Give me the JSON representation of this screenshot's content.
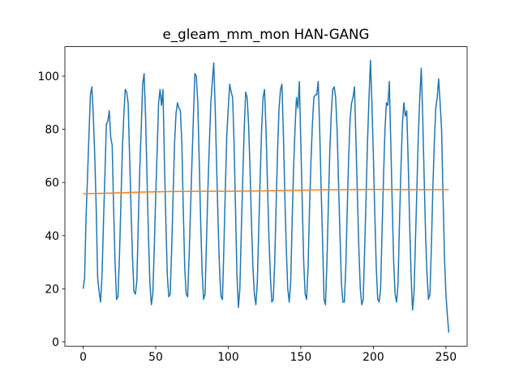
{
  "chart_data": {
    "type": "line",
    "title": "e_gleam_mm_mon HAN-GANG",
    "x": [
      0,
      1,
      2,
      3,
      4,
      5,
      6,
      7,
      8,
      9,
      10,
      11,
      12,
      13,
      14,
      15,
      16,
      17,
      18,
      19,
      20,
      21,
      22,
      23,
      24,
      25,
      26,
      27,
      28,
      29,
      30,
      31,
      32,
      33,
      34,
      35,
      36,
      37,
      38,
      39,
      40,
      41,
      42,
      43,
      44,
      45,
      46,
      47,
      48,
      49,
      50,
      51,
      52,
      53,
      54,
      55,
      56,
      57,
      58,
      59,
      60,
      61,
      62,
      63,
      64,
      65,
      66,
      67,
      68,
      69,
      70,
      71,
      72,
      73,
      74,
      75,
      76,
      77,
      78,
      79,
      80,
      81,
      82,
      83,
      84,
      85,
      86,
      87,
      88,
      89,
      90,
      91,
      92,
      93,
      94,
      95,
      96,
      97,
      98,
      99,
      100,
      101,
      102,
      103,
      104,
      105,
      106,
      107,
      108,
      109,
      110,
      111,
      112,
      113,
      114,
      115,
      116,
      117,
      118,
      119,
      120,
      121,
      122,
      123,
      124,
      125,
      126,
      127,
      128,
      129,
      130,
      131,
      132,
      133,
      134,
      135,
      136,
      137,
      138,
      139,
      140,
      141,
      142,
      143,
      144,
      145,
      146,
      147,
      148,
      149,
      150,
      151,
      152,
      153,
      154,
      155,
      156,
      157,
      158,
      159,
      160,
      161,
      162,
      163,
      164,
      165,
      166,
      167,
      168,
      169,
      170,
      171,
      172,
      173,
      174,
      175,
      176,
      177,
      178,
      179,
      180,
      181,
      182,
      183,
      184,
      185,
      186,
      187,
      188,
      189,
      190,
      191,
      192,
      193,
      194,
      195,
      196,
      197,
      198,
      199,
      200,
      201,
      202,
      203,
      204,
      205,
      206,
      207,
      208,
      209,
      210,
      211,
      212,
      213,
      214,
      215,
      216,
      217,
      218,
      219,
      220,
      221,
      222,
      223,
      224,
      225,
      226,
      227,
      228,
      229,
      230,
      231,
      232,
      233,
      234,
      235,
      236,
      237,
      238,
      239,
      240,
      241,
      242,
      243,
      244,
      245,
      246,
      247,
      248,
      249,
      250,
      251,
      252
    ],
    "series": [
      {
        "color": "#1f77b4",
        "values": [
          20,
          24,
          47,
          62,
          78,
          93,
          96,
          85,
          70,
          50,
          24,
          19,
          15,
          25,
          45,
          63,
          82,
          83,
          87,
          77,
          74,
          50,
          30,
          16,
          17,
          32,
          52,
          72,
          85,
          95,
          94,
          90,
          70,
          50,
          32,
          19,
          18,
          23,
          45,
          65,
          80,
          97,
          101,
          85,
          62,
          40,
          22,
          14,
          18,
          35,
          55,
          72,
          90,
          95,
          89,
          95,
          68,
          45,
          25,
          17,
          18,
          35,
          55,
          75,
          86,
          90,
          88,
          87,
          75,
          50,
          28,
          18,
          17,
          32,
          50,
          68,
          85,
          101,
          100,
          90,
          68,
          45,
          26,
          16,
          18,
          38,
          58,
          75,
          90,
          98,
          105,
          88,
          66,
          45,
          27,
          17,
          16,
          36,
          58,
          78,
          88,
          97,
          94,
          92,
          75,
          50,
          25,
          13,
          20,
          42,
          62,
          80,
          94,
          92,
          82,
          65,
          45,
          28,
          18,
          14,
          22,
          42,
          62,
          80,
          92,
          95,
          80,
          60,
          40,
          25,
          15,
          16,
          30,
          52,
          72,
          88,
          95,
          97,
          78,
          55,
          35,
          20,
          15,
          22,
          45,
          65,
          80,
          92,
          88,
          98,
          75,
          52,
          30,
          18,
          16,
          28,
          50,
          68,
          82,
          92,
          93,
          93,
          98,
          80,
          58,
          38,
          16,
          14,
          30,
          52,
          72,
          86,
          95,
          96,
          92,
          80,
          60,
          40,
          22,
          15,
          15,
          28,
          50,
          70,
          84,
          90,
          92,
          96,
          76,
          55,
          35,
          20,
          14,
          16,
          35,
          55,
          76,
          92,
          106,
          90,
          70,
          48,
          28,
          16,
          15,
          20,
          42,
          62,
          80,
          90,
          89,
          98,
          75,
          52,
          30,
          18,
          15,
          22,
          45,
          65,
          82,
          90,
          85,
          87,
          68,
          45,
          25,
          12,
          18,
          38,
          58,
          78,
          92,
          103,
          85,
          62,
          40,
          25,
          16,
          18,
          36,
          58,
          75,
          88,
          92,
          99,
          90,
          80,
          55,
          32,
          18,
          10,
          3.5
        ]
      },
      {
        "color": "#ff7f0e",
        "x": [
          0,
          20,
          40,
          60,
          80,
          100,
          120,
          140,
          160,
          180,
          200,
          220,
          240,
          252
        ],
        "values": [
          55.8,
          56.0,
          56.4,
          56.6,
          56.7,
          56.7,
          56.8,
          57.0,
          57.2,
          57.3,
          57.4,
          57.3,
          57.3,
          57.3
        ]
      }
    ],
    "xlim": [
      -12.6,
      264.6
    ],
    "ylim": [
      -1.6,
      111.1
    ],
    "xticks": [
      0,
      50,
      100,
      150,
      200,
      250
    ],
    "yticks": [
      0,
      20,
      40,
      60,
      80,
      100
    ]
  }
}
